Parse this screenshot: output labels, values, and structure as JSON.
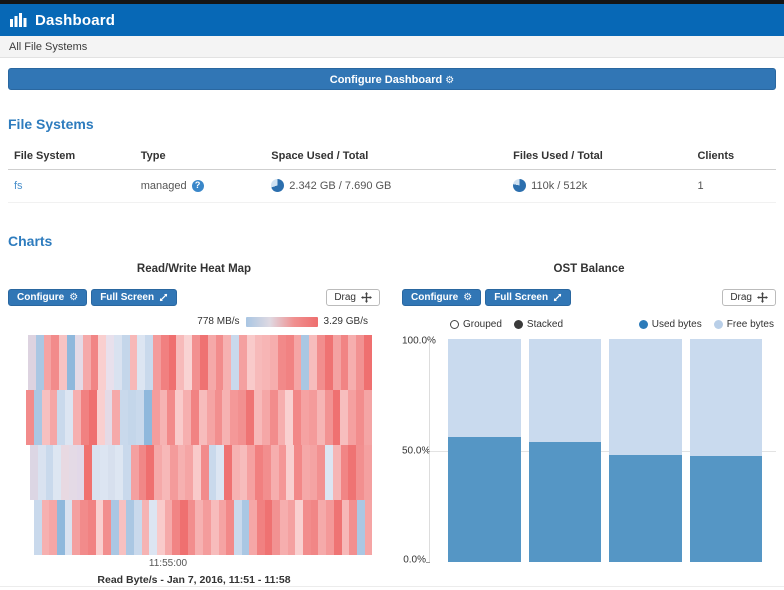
{
  "navbar": {
    "title": "Dashboard"
  },
  "breadcrumb": "All File Systems",
  "configure_dashboard_label": "Configure Dashboard",
  "sections": {
    "file_systems": "File Systems",
    "charts": "Charts"
  },
  "table": {
    "headers": [
      "File System",
      "Type",
      "Space Used / Total",
      "Files Used / Total",
      "Clients"
    ],
    "rows": [
      {
        "name": "fs",
        "type": "managed",
        "space": "2.342 GB / 7.690 GB",
        "files": "110k / 512k",
        "clients": "1"
      }
    ]
  },
  "toolbar": {
    "configure": "Configure",
    "fullscreen": "Full Screen",
    "drag": "Drag"
  },
  "colors": {
    "navbar": "#0768b6",
    "button_blue": "#3176b5",
    "heading_blue": "#2e7cbe",
    "link_blue": "#4a90cc",
    "pie_dark": "#2c6fae",
    "pie_light": "#cfe1f1"
  },
  "chart_data": [
    {
      "type": "heatmap",
      "title": "Read/Write Heat Map",
      "legend": {
        "min": "778 MB/s",
        "max": "3.29 GB/s",
        "gradient": [
          "#a9c6e3",
          "#dfd9e2",
          "#f09090",
          "#ee6e6e"
        ]
      },
      "x_ticks": [
        "11:55:00"
      ],
      "caption": "Read Byte/s - Jan 7, 2016, 11:51 - 11:58",
      "rows": [
        {
          "offset": 10,
          "colors": [
            "#ddd3e0",
            "#aac7e3",
            "#f5a3a3",
            "#f28b8b",
            "#f7c3c3",
            "#8fb8dc",
            "#e4dae6",
            "#f5a9a9",
            "#f18585",
            "#f9cfcf",
            "#e8e0ec",
            "#d9e2f0",
            "#c4d6ea",
            "#f7b8b8",
            "#dce5f2",
            "#c9d9ec",
            "#f49b9b",
            "#f18080",
            "#ef6f6f",
            "#f7baba",
            "#f9d3d3",
            "#f29090",
            "#ef7272",
            "#f5a8a8",
            "#f28c8c",
            "#f6b1b1",
            "#c9d9ec",
            "#f4a0a0",
            "#f9caca",
            "#f7baba",
            "#f7b5b5",
            "#f6adad",
            "#f28989",
            "#f18282",
            "#f5a5a5",
            "#aac7e3",
            "#f7bcbc",
            "#f28e8e",
            "#ef7373",
            "#f4a2a2",
            "#f18484",
            "#f6aeae",
            "#f29292",
            "#ef7070"
          ]
        },
        {
          "offset": 8,
          "colors": [
            "#f28b8b",
            "#aac7e3",
            "#f7c0c0",
            "#f5a6a6",
            "#c9d9ec",
            "#dce5f2",
            "#f6b0b0",
            "#f18181",
            "#ef6f6f",
            "#f9cfcf",
            "#e4dae6",
            "#f5a9a9",
            "#c9d9ec",
            "#c4d6ea",
            "#c9d9ec",
            "#8fb8dc",
            "#f49d9d",
            "#f6b3b3",
            "#f28a8a",
            "#f9caca",
            "#f6afaf",
            "#f18383",
            "#f7bcbc",
            "#f5a4a4",
            "#f28f8f",
            "#f6b2b2",
            "#f49898",
            "#f29090",
            "#ef7474",
            "#f7b9b9",
            "#f5a7a7",
            "#f28c8c",
            "#f6aeae",
            "#f9d0d0",
            "#f28787",
            "#f5a2a2",
            "#f49b9b",
            "#f6b5b5",
            "#f29393",
            "#ef7171",
            "#f7bebe",
            "#f5a0a0",
            "#f28d8d",
            "#f4a5a5"
          ]
        },
        {
          "offset": 12,
          "colors": [
            "#dcd6e4",
            "#d9e2f0",
            "#c9d9ec",
            "#dde6f2",
            "#e8d9e2",
            "#e4dae6",
            "#e2d8e8",
            "#f0716f",
            "#d9e2f0",
            "#dce5f2",
            "#d7e0ee",
            "#dde6f2",
            "#c9d9ec",
            "#f4a0a0",
            "#f18787",
            "#ef6f6f",
            "#f5a9a9",
            "#f7b8b8",
            "#f49b9b",
            "#f6b0b0",
            "#f5a5a5",
            "#f9caca",
            "#f28b8b",
            "#c9d9ec",
            "#dce5f2",
            "#ef7272",
            "#f6b2b2",
            "#f7bcbc",
            "#f5a1a1",
            "#f18080",
            "#f28e8e",
            "#f6aeae",
            "#f49797",
            "#f9cfcf",
            "#f28888",
            "#f5a8a8",
            "#f4a3a3",
            "#f29191",
            "#dce5f2",
            "#f6b5b5",
            "#f18585",
            "#ef7373",
            "#f28f8f",
            "#f4a0a0"
          ]
        },
        {
          "offset": 16,
          "colors": [
            "#c9d9ec",
            "#f6b0b0",
            "#f5a6a6",
            "#8fb8dc",
            "#d9e2f0",
            "#f4a0a0",
            "#f28b8b",
            "#f18282",
            "#f9cfcf",
            "#f28e8e",
            "#aac7e3",
            "#f7c0c0",
            "#aac7e3",
            "#c9d9ec",
            "#f6b3b3",
            "#dce5f2",
            "#f9caca",
            "#f5a9a9",
            "#f18484",
            "#ef7070",
            "#f28d8d",
            "#f6b1b1",
            "#f49c9c",
            "#f7bcbc",
            "#f5a3a3",
            "#f28989",
            "#c9d9ec",
            "#aac7e3",
            "#f5a7a7",
            "#f18181",
            "#ef7272",
            "#f29292",
            "#f6aeae",
            "#f4a1a1",
            "#f9d0d0",
            "#f28c8c",
            "#f18686",
            "#f5aaaa",
            "#f49999",
            "#ef7474",
            "#f7b8b8",
            "#f28f8f",
            "#aac7e3",
            "#f5a5a5"
          ]
        }
      ]
    },
    {
      "type": "bar",
      "stacked": true,
      "title": "OST Balance",
      "controls": [
        {
          "label": "Grouped",
          "selected": false
        },
        {
          "label": "Stacked",
          "selected": true
        }
      ],
      "legend": [
        {
          "label": "Used bytes",
          "color": "#2d7bb9"
        },
        {
          "label": "Free bytes",
          "color": "#b9cfe8"
        }
      ],
      "series": [
        {
          "name": "Used bytes",
          "color": "#5596c5",
          "values": [
            56,
            54,
            48,
            47.5
          ]
        },
        {
          "name": "Free bytes",
          "color": "#c9daee",
          "values": [
            44,
            46,
            52,
            52.5
          ]
        }
      ],
      "y_ticks": [
        "0.0%",
        "50.0%",
        "100.0%"
      ],
      "ylim": [
        0,
        100
      ],
      "grid": "50% line only",
      "legend_position": "top-right"
    }
  ]
}
